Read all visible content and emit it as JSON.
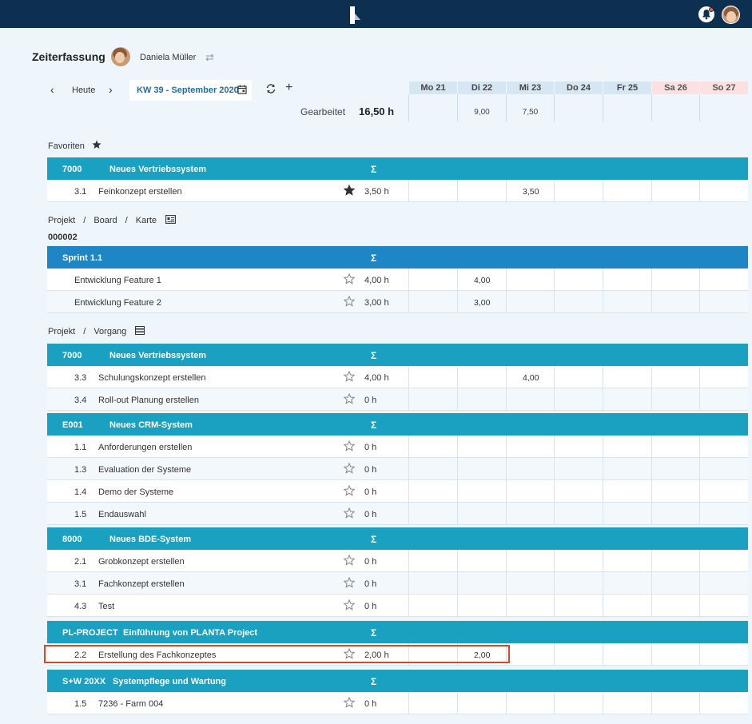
{
  "header": {
    "app_logo": "planta-logo",
    "bell_icon": "bell-icon",
    "notification_dot_color": "#ff5a2c"
  },
  "title": "Zeiterfassung",
  "user": {
    "name": "Daniela Müller",
    "switch_icon": "swap-icon"
  },
  "nav": {
    "today": "Heute",
    "week": "KW 39 - September 2020"
  },
  "worked": {
    "label": "Gearbeitet",
    "value": "16,50 h"
  },
  "days": [
    {
      "label": "Mo 21",
      "total": ""
    },
    {
      "label": "Di 22",
      "total": "9,00"
    },
    {
      "label": "Mi 23",
      "total": "7,50"
    },
    {
      "label": "Do 24",
      "total": ""
    },
    {
      "label": "Fr 25",
      "total": ""
    },
    {
      "label": "Sa 26",
      "total": ""
    },
    {
      "label": "So 27",
      "total": ""
    }
  ],
  "favorites": {
    "label": "Favoriten"
  },
  "board": {
    "p1": "Projekt",
    "p2": "Board",
    "p3": "Karte",
    "sub": "000002"
  },
  "vorgang": {
    "p1": "Projekt",
    "p2": "Vorgang"
  },
  "sep": "/",
  "sigma": "Σ",
  "groups": [
    {
      "code": "7000",
      "name": "Neues Vertriebssystem"
    },
    {
      "code": "",
      "name": "Sprint 1.1"
    },
    {
      "code": "7000",
      "name": "Neues Vertriebssystem"
    },
    {
      "code": "E001",
      "name": "Neues CRM-System"
    },
    {
      "code": "8000",
      "name": "Neues BDE-System"
    },
    {
      "code": "PL-PROJECT",
      "name": "Einführung von PLANTA Project"
    },
    {
      "code": "S+W 20XX",
      "name": "Systempflege und Wartung"
    }
  ],
  "rows": [
    {
      "num": "3.1",
      "task": "Feinkonzept erstellen",
      "hours": "3,50 h",
      "starred": true,
      "mo": "",
      "di": "",
      "mi": "3,50"
    },
    {
      "num": "",
      "task": "Entwicklung Feature 1",
      "hours": "4,00 h",
      "starred": false,
      "mo": "",
      "di": "4,00",
      "mi": ""
    },
    {
      "num": "",
      "task": "Entwicklung Feature 2",
      "hours": "3,00 h",
      "starred": false,
      "mo": "",
      "di": "3,00",
      "mi": ""
    },
    {
      "num": "3.3",
      "task": "Schulungskonzept erstellen",
      "hours": "4,00 h",
      "starred": false,
      "mo": "",
      "di": "",
      "mi": "4,00"
    },
    {
      "num": "3.4",
      "task": "Roll-out Planung erstellen",
      "hours": "0 h",
      "starred": false,
      "mo": "",
      "di": "",
      "mi": ""
    },
    {
      "num": "1.1",
      "task": "Anforderungen erstellen",
      "hours": "0 h",
      "starred": false,
      "mo": "",
      "di": "",
      "mi": ""
    },
    {
      "num": "1.3",
      "task": "Evaluation der Systeme",
      "hours": "0 h",
      "starred": false,
      "mo": "",
      "di": "",
      "mi": ""
    },
    {
      "num": "1.4",
      "task": "Demo der Systeme",
      "hours": "0 h",
      "starred": false,
      "mo": "",
      "di": "",
      "mi": ""
    },
    {
      "num": "1.5",
      "task": "Endauswahl",
      "hours": "0 h",
      "starred": false,
      "mo": "",
      "di": "",
      "mi": ""
    },
    {
      "num": "2.1",
      "task": "Grobkonzept erstellen",
      "hours": "0 h",
      "starred": false,
      "mo": "",
      "di": "",
      "mi": ""
    },
    {
      "num": "3.1",
      "task": "Fachkonzept erstellen",
      "hours": "0 h",
      "starred": false,
      "mo": "",
      "di": "",
      "mi": ""
    },
    {
      "num": "4.3",
      "task": "Test",
      "hours": "0 h",
      "starred": false,
      "mo": "",
      "di": "",
      "mi": ""
    },
    {
      "num": "2.2",
      "task": "Erstellung des Fachkonzeptes",
      "hours": "2,00 h",
      "starred": false,
      "mo": "",
      "di": "2,00",
      "mi": ""
    },
    {
      "num": "1.5",
      "task": "7236 - Farm 004",
      "hours": "0 h",
      "starred": false,
      "mo": "",
      "di": "",
      "mi": ""
    }
  ],
  "colors": {
    "topbar": "#0d3050",
    "group": "#1aa0c0",
    "sprint": "#1f86c6",
    "weekend": "#fde0e0",
    "highlight": "#d9472b"
  }
}
